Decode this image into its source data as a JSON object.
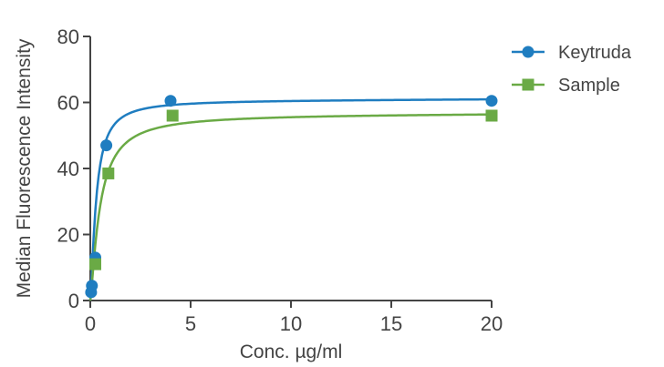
{
  "chart_data": {
    "type": "scatter",
    "title": "",
    "xlabel": "Conc. µg/ml",
    "ylabel": "Median Fluorescence Intensity",
    "xlim": [
      0,
      20
    ],
    "ylim": [
      0,
      80
    ],
    "x_ticks": [
      "0",
      "5",
      "10",
      "15",
      "20"
    ],
    "y_ticks": [
      "0",
      "20",
      "40",
      "60",
      "80"
    ],
    "grid": false,
    "legend_position": "top-right",
    "series": [
      {
        "name": "Keytruda",
        "marker": "circle",
        "color": "#1f7dc0",
        "x": [
          0.04,
          0.08,
          0.25,
          0.8,
          4.0,
          20.0
        ],
        "y": [
          2.5,
          4.5,
          13.0,
          47.0,
          60.5,
          60.5
        ],
        "fit": {
          "top": 60.6,
          "ec50": 0.29,
          "hill": 1.4,
          "slope": 0.025
        }
      },
      {
        "name": "Sample",
        "marker": "square",
        "color": "#6aaa45",
        "x": [
          0.25,
          0.9,
          4.1,
          20.0
        ],
        "y": [
          11.0,
          38.5,
          56.0,
          56.0
        ],
        "fit": {
          "top": 56.4,
          "ec50": 0.48,
          "hill": 1.3,
          "slope": 0.02
        }
      }
    ]
  }
}
